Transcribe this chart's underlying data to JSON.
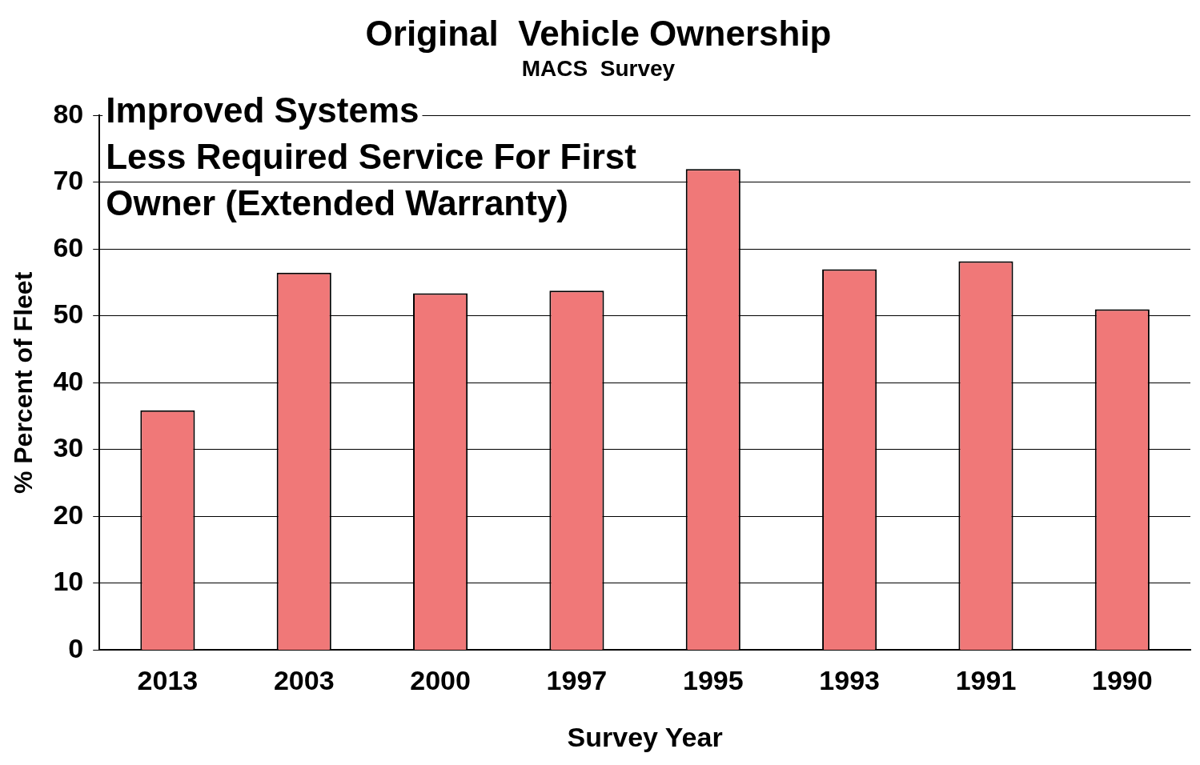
{
  "chart_data": {
    "type": "bar",
    "title": "Original  Vehicle Ownership",
    "subtitle": "MACS  Survey",
    "xlabel": "Survey Year",
    "ylabel": "% Percent of Fleet",
    "annotations": [
      "Improved Systems",
      "Less Required Service For First",
      "Owner (Extended Warranty)"
    ],
    "categories": [
      "2013",
      "2003",
      "2000",
      "1997",
      "1995",
      "1993",
      "1991",
      "1990"
    ],
    "values": [
      35.9,
      56.5,
      53.4,
      53.8,
      72,
      57,
      58.2,
      51
    ],
    "color": "#f07878",
    "ylim": [
      0,
      80
    ],
    "yticks": [
      0,
      10,
      20,
      30,
      40,
      50,
      60,
      70,
      80
    ],
    "grid": "y",
    "legend": false
  }
}
